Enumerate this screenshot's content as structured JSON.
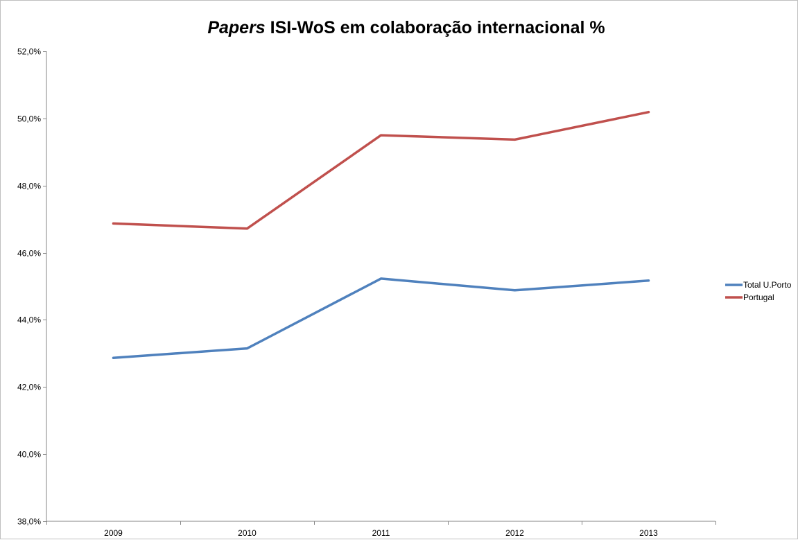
{
  "chart_data": {
    "type": "line",
    "title_italic": "Papers",
    "title_rest": " ISI-WoS em colaboração internacional %",
    "xlabel": "",
    "ylabel": "",
    "categories": [
      "2009",
      "2010",
      "2011",
      "2012",
      "2013"
    ],
    "ylim": [
      38.0,
      52.0
    ],
    "y_ticks": [
      38.0,
      40.0,
      42.0,
      44.0,
      46.0,
      48.0,
      50.0,
      52.0
    ],
    "y_tick_labels": [
      "38,0%",
      "40,0%",
      "42,0%",
      "44,0%",
      "46,0%",
      "48,0%",
      "50,0%",
      "52,0%"
    ],
    "grid": false,
    "legend_position": "right",
    "series": [
      {
        "name": "Total U.Porto",
        "color": "#4f81bd",
        "values": [
          42.87,
          43.15,
          45.23,
          44.88,
          45.17
        ]
      },
      {
        "name": "Portugal",
        "color": "#c0504d",
        "values": [
          46.87,
          46.72,
          49.5,
          49.37,
          50.19
        ]
      }
    ]
  }
}
